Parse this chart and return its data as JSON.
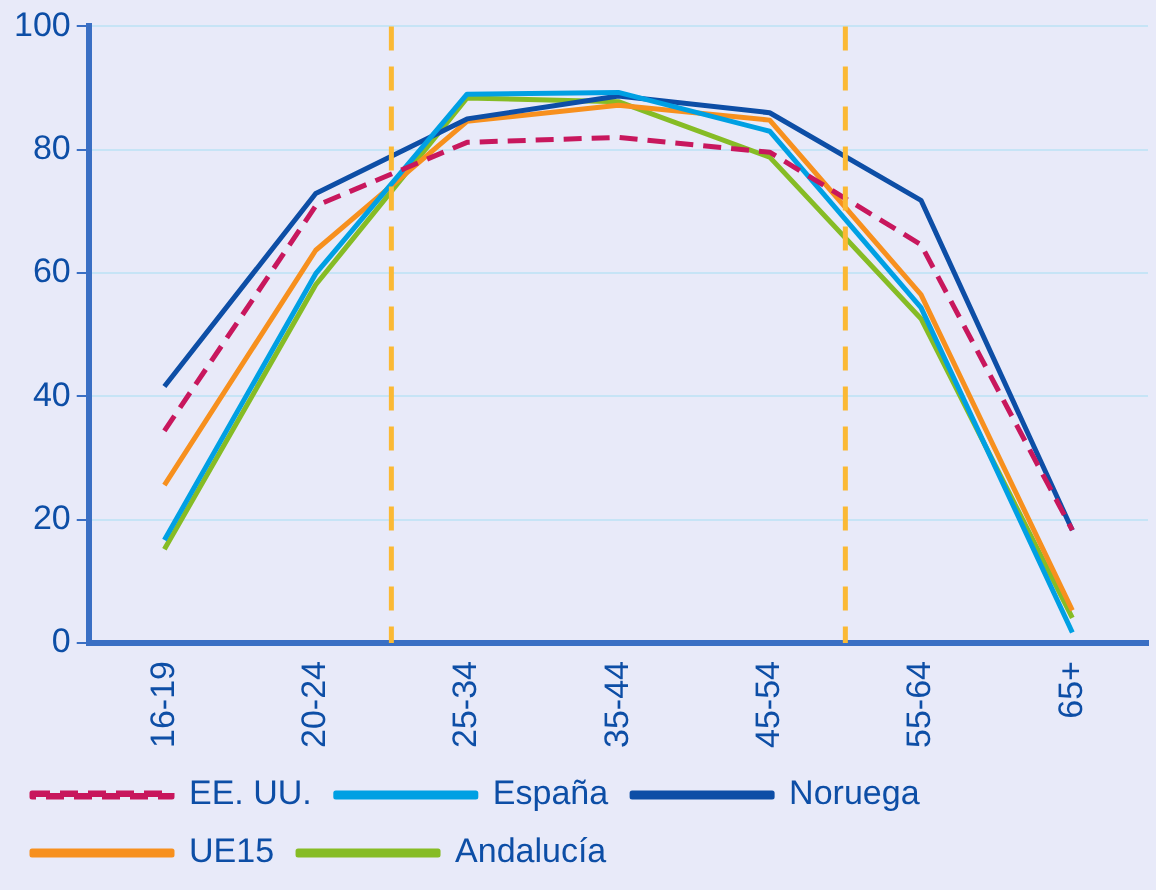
{
  "chart_data": {
    "type": "line",
    "categories": [
      "16-19",
      "20-24",
      "25-34",
      "35-44",
      "45-54",
      "55-64",
      "65+"
    ],
    "series": [
      {
        "name": "España",
        "color": "#00a0e3",
        "values": [
          16.7,
          59.9,
          89.0,
          89.3,
          83.0,
          54.4,
          1.7
        ]
      },
      {
        "name": "Noruega",
        "color": "#0d4ea6",
        "values": [
          41.6,
          72.9,
          85.0,
          88.7,
          86.0,
          71.8,
          18.3
        ]
      },
      {
        "name": "EE. UU.",
        "color": "#c8175d",
        "line_style": "dashed",
        "values": [
          34.4,
          70.9,
          81.2,
          82.0,
          79.6,
          64.6,
          18.3
        ]
      },
      {
        "name": "UE15",
        "color": "#f7901e",
        "values": [
          25.6,
          63.7,
          84.6,
          87.2,
          84.8,
          56.5,
          5.3
        ]
      },
      {
        "name": "Andalucía",
        "color": "#86bc25",
        "values": [
          15.2,
          58.1,
          88.4,
          87.8,
          78.8,
          52.6,
          4.1
        ]
      }
    ],
    "ylim": [
      0,
      100
    ],
    "yticks": [
      0,
      20,
      40,
      60,
      80,
      100
    ],
    "grid": "y",
    "legend": "bottom",
    "marker": "none",
    "line_style": "solid"
  }
}
